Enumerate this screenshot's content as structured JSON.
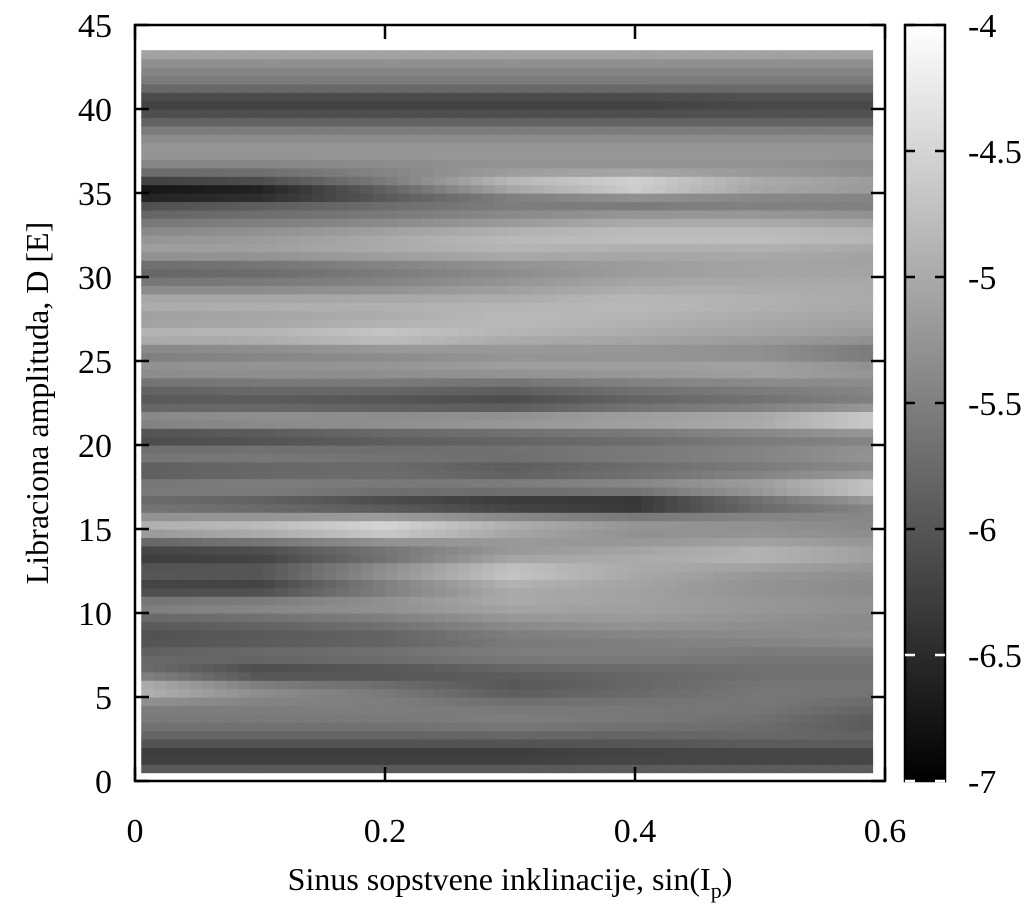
{
  "chart_data": {
    "type": "heatmap",
    "xlabel": "Sinus sopstvene inklinacije, sin(I",
    "xlabel_sub": "p",
    "xlabel_close": ")",
    "ylabel": "Libraciona amplituda, D [E]",
    "xlim": [
      0,
      0.6
    ],
    "ylim": [
      0,
      45
    ],
    "x_ticks": [
      "0",
      "0.2",
      "0.4",
      "0.6"
    ],
    "y_ticks": [
      "0",
      "5",
      "10",
      "15",
      "20",
      "25",
      "30",
      "35",
      "40",
      "45"
    ],
    "colorbar": {
      "range": [
        -7,
        -4
      ],
      "ticks": [
        "-7",
        "-6.5",
        "-6",
        "-5.5",
        "-5",
        "-4.5",
        "-4"
      ],
      "colormap": "grayscale (black = -7, white = -4)"
    },
    "x_columns": [
      0.0,
      0.1,
      0.2,
      0.3,
      0.4,
      0.5,
      0.6
    ],
    "rows": [
      {
        "y": 0.5,
        "values": [
          -5.8,
          -5.8,
          -5.8,
          -5.8,
          -5.8,
          -5.8,
          -5.8
        ]
      },
      {
        "y": 1.5,
        "values": [
          -6.4,
          -6.4,
          -6.4,
          -6.4,
          -6.3,
          -6.3,
          -6.3
        ]
      },
      {
        "y": 2.5,
        "values": [
          -5.9,
          -5.9,
          -5.9,
          -5.9,
          -5.9,
          -5.8,
          -5.8
        ]
      },
      {
        "y": 3.5,
        "values": [
          -5.6,
          -5.6,
          -5.6,
          -5.5,
          -5.6,
          -5.7,
          -6.0
        ]
      },
      {
        "y": 4.5,
        "values": [
          -5.5,
          -5.5,
          -5.5,
          -5.6,
          -5.6,
          -5.6,
          -5.8
        ]
      },
      {
        "y": 5.5,
        "values": [
          -4.7,
          -5.3,
          -5.6,
          -6.0,
          -5.8,
          -5.6,
          -5.6
        ]
      },
      {
        "y": 6.5,
        "values": [
          -5.7,
          -6.2,
          -6.1,
          -5.9,
          -5.8,
          -5.7,
          -5.7
        ]
      },
      {
        "y": 7.5,
        "values": [
          -5.8,
          -5.7,
          -5.6,
          -5.5,
          -5.5,
          -5.6,
          -5.6
        ]
      },
      {
        "y": 8.5,
        "values": [
          -6.1,
          -6.0,
          -5.9,
          -5.6,
          -5.5,
          -5.4,
          -5.3
        ]
      },
      {
        "y": 9.5,
        "values": [
          -5.9,
          -5.8,
          -5.6,
          -5.3,
          -5.2,
          -5.3,
          -5.4
        ]
      },
      {
        "y": 10.5,
        "values": [
          -5.4,
          -5.3,
          -5.2,
          -5.0,
          -5.1,
          -5.2,
          -5.3
        ]
      },
      {
        "y": 11.5,
        "values": [
          -6.3,
          -6.3,
          -5.6,
          -5.0,
          -5.1,
          -5.3,
          -5.4
        ]
      },
      {
        "y": 12.5,
        "values": [
          -5.9,
          -5.9,
          -5.2,
          -4.6,
          -5.0,
          -5.2,
          -5.3
        ]
      },
      {
        "y": 13.5,
        "values": [
          -6.4,
          -6.3,
          -5.8,
          -5.2,
          -5.0,
          -4.8,
          -5.1
        ]
      },
      {
        "y": 14.5,
        "values": [
          -5.6,
          -5.4,
          -5.1,
          -5.2,
          -5.3,
          -5.2,
          -5.3
        ]
      },
      {
        "y": 15.0,
        "values": [
          -4.8,
          -4.6,
          -4.2,
          -4.9,
          -5.3,
          -5.3,
          -5.4
        ]
      },
      {
        "y": 15.5,
        "values": [
          -5.1,
          -5.0,
          -4.8,
          -5.0,
          -5.2,
          -5.3,
          -5.4
        ]
      },
      {
        "y": 16.5,
        "values": [
          -5.8,
          -6.0,
          -6.3,
          -6.6,
          -6.7,
          -5.9,
          -5.4
        ]
      },
      {
        "y": 17.5,
        "values": [
          -5.5,
          -5.4,
          -5.5,
          -5.4,
          -5.3,
          -5.0,
          -4.4
        ]
      },
      {
        "y": 18.5,
        "values": [
          -6.0,
          -5.9,
          -5.8,
          -6.0,
          -5.8,
          -5.6,
          -5.4
        ]
      },
      {
        "y": 19.5,
        "values": [
          -5.5,
          -5.5,
          -5.6,
          -5.6,
          -5.5,
          -5.4,
          -5.2
        ]
      },
      {
        "y": 20.5,
        "values": [
          -6.3,
          -6.2,
          -6.0,
          -5.9,
          -5.8,
          -5.6,
          -5.5
        ]
      },
      {
        "y": 21.5,
        "values": [
          -5.2,
          -5.1,
          -5.1,
          -5.0,
          -4.9,
          -4.8,
          -4.3
        ]
      },
      {
        "y": 22.5,
        "values": [
          -6.0,
          -6.0,
          -6.1,
          -6.2,
          -5.9,
          -5.7,
          -5.5
        ]
      },
      {
        "y": 23.5,
        "values": [
          -5.8,
          -5.7,
          -5.7,
          -5.8,
          -5.6,
          -5.5,
          -5.4
        ]
      },
      {
        "y": 24.5,
        "values": [
          -5.2,
          -5.2,
          -5.2,
          -5.1,
          -5.1,
          -5.0,
          -5.2
        ]
      },
      {
        "y": 25.5,
        "values": [
          -5.6,
          -5.5,
          -5.4,
          -5.3,
          -5.3,
          -5.4,
          -5.7
        ]
      },
      {
        "y": 26.5,
        "values": [
          -4.8,
          -4.8,
          -4.6,
          -4.9,
          -5.0,
          -5.1,
          -5.2
        ]
      },
      {
        "y": 27.5,
        "values": [
          -5.2,
          -5.1,
          -5.0,
          -4.8,
          -4.9,
          -5.0,
          -5.1
        ]
      },
      {
        "y": 28.5,
        "values": [
          -4.9,
          -4.9,
          -4.9,
          -4.9,
          -4.8,
          -4.9,
          -5.0
        ]
      },
      {
        "y": 29.5,
        "values": [
          -5.5,
          -5.5,
          -5.4,
          -5.2,
          -5.0,
          -5.0,
          -5.0
        ]
      },
      {
        "y": 30.5,
        "values": [
          -5.9,
          -5.8,
          -5.6,
          -5.4,
          -5.2,
          -5.1,
          -5.1
        ]
      },
      {
        "y": 31.5,
        "values": [
          -5.1,
          -5.1,
          -5.0,
          -4.9,
          -5.0,
          -5.0,
          -5.1
        ]
      },
      {
        "y": 32.5,
        "values": [
          -5.3,
          -5.2,
          -5.0,
          -4.8,
          -4.7,
          -4.7,
          -4.8
        ]
      },
      {
        "y": 33.5,
        "values": [
          -5.7,
          -5.6,
          -5.5,
          -5.3,
          -5.1,
          -5.1,
          -5.2
        ]
      },
      {
        "y": 34.5,
        "values": [
          -6.2,
          -6.0,
          -5.8,
          -5.6,
          -5.7,
          -5.6,
          -5.6
        ]
      },
      {
        "y": 35.0,
        "values": [
          -7.0,
          -6.9,
          -6.1,
          -5.4,
          -4.9,
          -5.2,
          -5.3
        ]
      },
      {
        "y": 35.5,
        "values": [
          -6.5,
          -6.3,
          -5.6,
          -4.7,
          -4.3,
          -4.9,
          -5.1
        ]
      },
      {
        "y": 36.5,
        "values": [
          -5.5,
          -5.5,
          -5.4,
          -5.3,
          -5.3,
          -5.3,
          -5.4
        ]
      },
      {
        "y": 37.5,
        "values": [
          -5.2,
          -5.2,
          -5.2,
          -5.2,
          -5.2,
          -5.2,
          -5.2
        ]
      },
      {
        "y": 38.5,
        "values": [
          -5.4,
          -5.4,
          -5.4,
          -5.4,
          -5.4,
          -5.4,
          -5.4
        ]
      },
      {
        "y": 39.5,
        "values": [
          -6.0,
          -6.0,
          -6.0,
          -6.0,
          -6.0,
          -6.0,
          -6.0
        ]
      },
      {
        "y": 40.5,
        "values": [
          -6.3,
          -6.3,
          -6.3,
          -6.3,
          -6.3,
          -6.2,
          -6.2
        ]
      },
      {
        "y": 41.5,
        "values": [
          -5.6,
          -5.6,
          -5.6,
          -5.6,
          -5.6,
          -5.6,
          -5.6
        ]
      },
      {
        "y": 42.5,
        "values": [
          -5.4,
          -5.4,
          -5.4,
          -5.4,
          -5.4,
          -5.4,
          -5.4
        ]
      },
      {
        "y": 43.5,
        "values": [
          -5.0,
          -5.0,
          -5.0,
          -5.0,
          -5.0,
          -5.0,
          -5.0
        ]
      }
    ],
    "grid": false,
    "legend": "colorbar-right"
  }
}
